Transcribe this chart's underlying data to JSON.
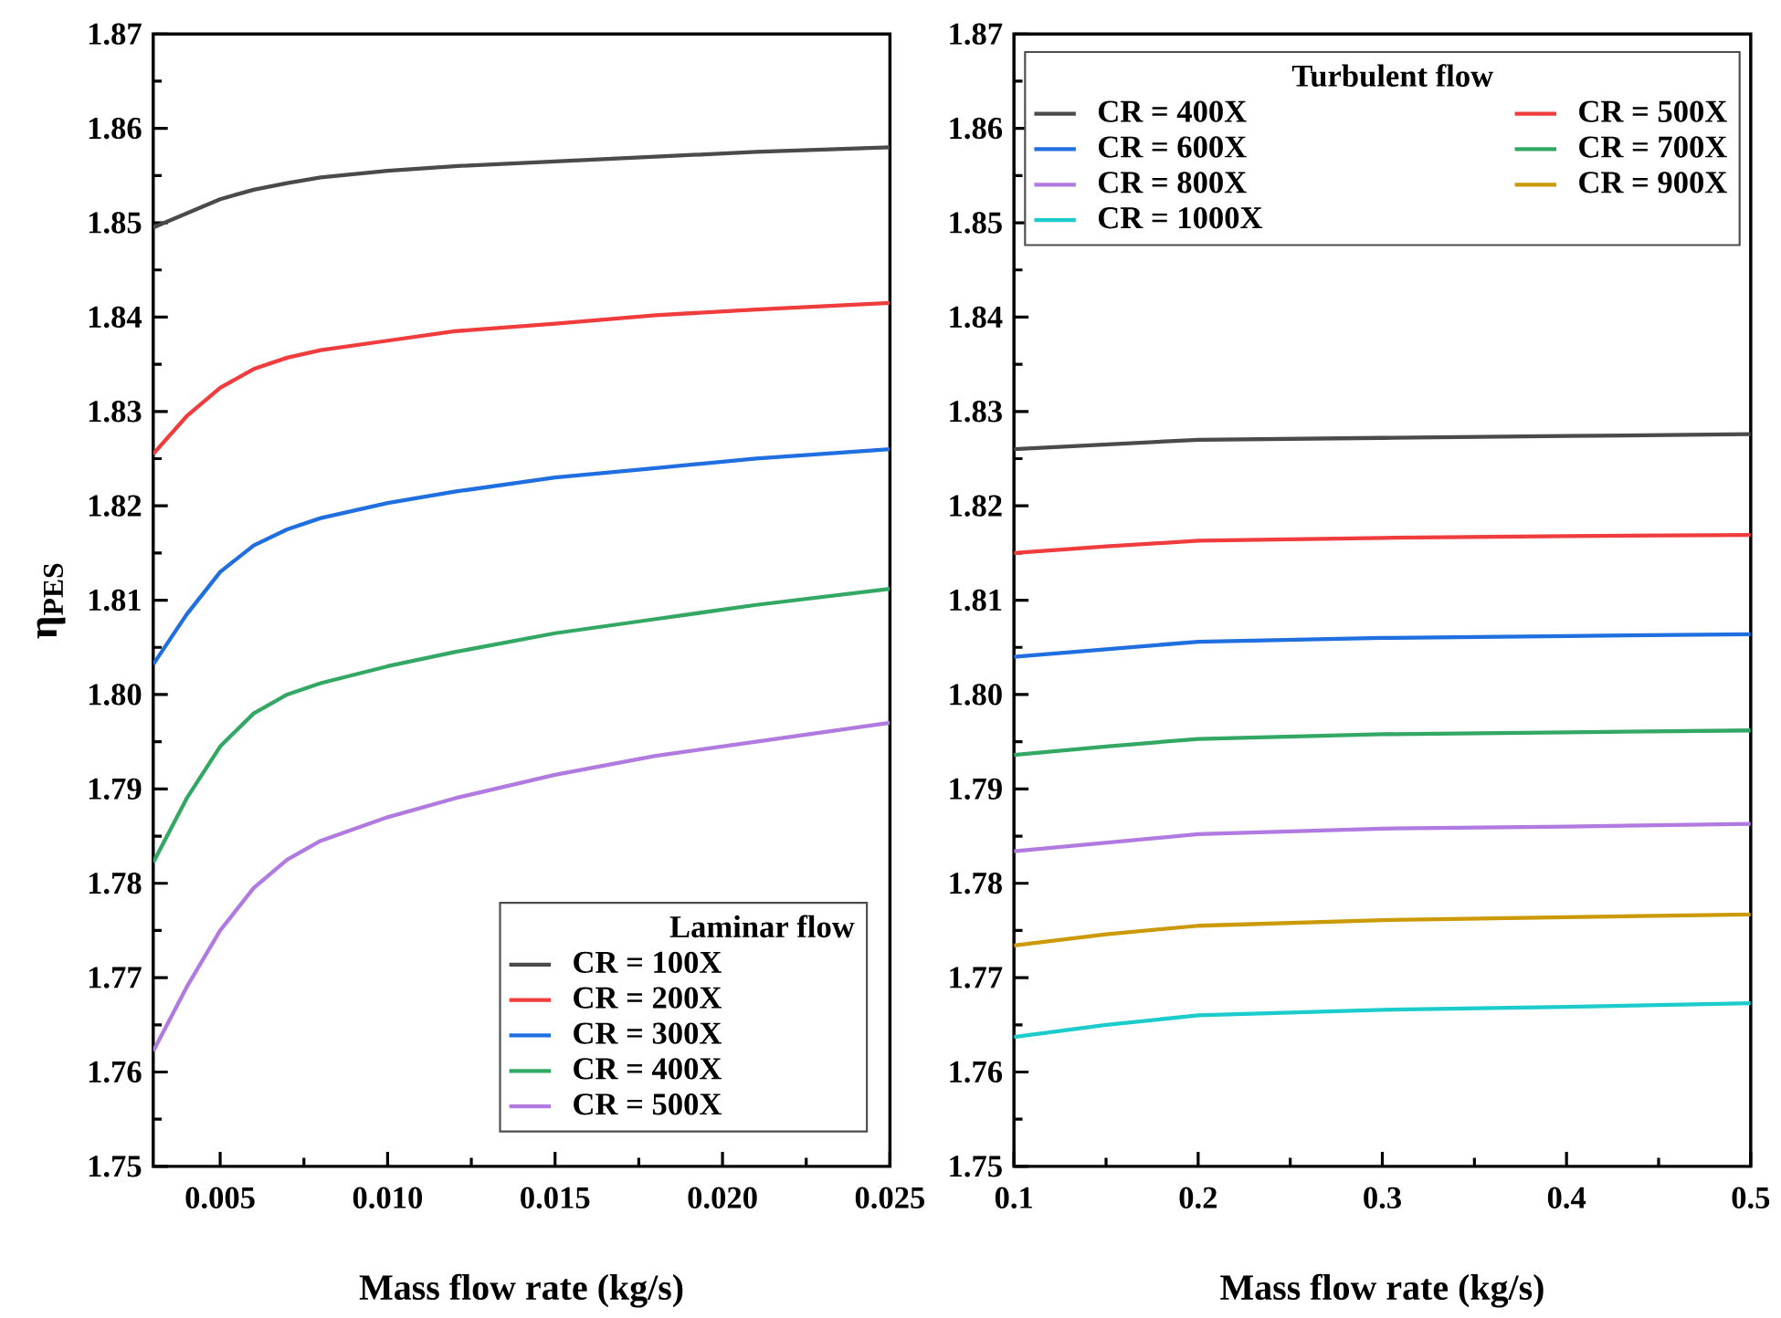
{
  "chart_data": [
    {
      "type": "line",
      "xlabel": "Mass flow rate (kg/s)",
      "ylabel": "η$_{PES}$",
      "legend_title": "Laminar flow",
      "legend": "bottom right",
      "x": [
        0.003,
        0.004,
        0.005,
        0.006,
        0.007,
        0.008,
        0.01,
        0.012,
        0.015,
        0.018,
        0.021,
        0.025
      ],
      "xlim": [
        0.003,
        0.025
      ],
      "ylim": [
        1.75,
        1.87
      ],
      "xticks": [
        0.005,
        {
          "value": 0.01,
          "label": "0.010"
        },
        0.015,
        {
          "value": 0.02,
          "label": "0.020"
        },
        0.025
      ],
      "yticks": [
        1.75,
        1.76,
        1.77,
        1.78,
        1.79,
        {
          "value": 1.8,
          "label": "1.80"
        },
        1.81,
        1.82,
        1.83,
        1.84,
        1.85,
        1.86,
        1.87
      ],
      "series": [
        {
          "name": "CR = 100X",
          "color": "#4a4a4a",
          "values": [
            1.8495,
            1.851,
            1.8525,
            1.8535,
            1.8542,
            1.8548,
            1.8555,
            1.856,
            1.8565,
            1.857,
            1.8575,
            1.858
          ]
        },
        {
          "name": "CR = 200X",
          "color": "#f03c3c",
          "values": [
            1.8255,
            1.8295,
            1.8325,
            1.8345,
            1.8357,
            1.8365,
            1.8375,
            1.8385,
            1.8393,
            1.8402,
            1.8408,
            1.8415
          ]
        },
        {
          "name": "CR = 300X",
          "color": "#1f6fe0",
          "values": [
            1.8032,
            1.8085,
            1.813,
            1.8158,
            1.8175,
            1.8187,
            1.8203,
            1.8215,
            1.823,
            1.824,
            1.825,
            1.826
          ]
        },
        {
          "name": "CR = 400X",
          "color": "#33a864",
          "values": [
            1.7822,
            1.789,
            1.7945,
            1.798,
            1.8,
            1.8012,
            1.803,
            1.8045,
            1.8065,
            1.808,
            1.8095,
            1.8112
          ]
        },
        {
          "name": "CR = 500X",
          "color": "#b07ae0",
          "values": [
            1.7622,
            1.769,
            1.775,
            1.7795,
            1.7825,
            1.7845,
            1.787,
            1.789,
            1.7915,
            1.7935,
            1.795,
            1.797
          ]
        }
      ]
    },
    {
      "type": "line",
      "xlabel": "Mass flow rate (kg/s)",
      "legend_title": "Turbulent flow",
      "legend": "top",
      "x": [
        0.1,
        0.15,
        0.2,
        0.3,
        0.4,
        0.5
      ],
      "xlim": [
        0.1,
        0.5
      ],
      "ylim": [
        1.75,
        1.87
      ],
      "xticks": [
        0.1,
        0.2,
        0.3,
        0.4,
        0.5
      ],
      "yticks": [
        1.75,
        1.76,
        1.77,
        1.78,
        1.79,
        {
          "value": 1.8,
          "label": "1.80"
        },
        1.81,
        1.82,
        1.83,
        1.84,
        1.85,
        1.86,
        1.87
      ],
      "series": [
        {
          "name": "CR = 400X",
          "color": "#4a4a4a",
          "values": [
            1.826,
            1.8265,
            1.827,
            1.8272,
            1.8274,
            1.8276
          ]
        },
        {
          "name": "CR = 500X",
          "color": "#f03c3c",
          "values": [
            1.815,
            1.8157,
            1.8163,
            1.8166,
            1.8168,
            1.8169
          ]
        },
        {
          "name": "CR = 600X",
          "color": "#1f6fe0",
          "values": [
            1.804,
            1.8048,
            1.8056,
            1.806,
            1.8062,
            1.8064
          ]
        },
        {
          "name": "CR = 700X",
          "color": "#33a864",
          "values": [
            1.7936,
            1.7945,
            1.7953,
            1.7958,
            1.796,
            1.7962
          ]
        },
        {
          "name": "CR = 800X",
          "color": "#b07ae0",
          "values": [
            1.7834,
            1.7843,
            1.7852,
            1.7858,
            1.786,
            1.7863
          ]
        },
        {
          "name": "CR = 900X",
          "color": "#cc9a06",
          "values": [
            1.7734,
            1.7746,
            1.7755,
            1.7761,
            1.7764,
            1.7767
          ]
        },
        {
          "name": "CR = 1000X",
          "color": "#1ccccc",
          "values": [
            1.7637,
            1.765,
            1.766,
            1.7666,
            1.7669,
            1.7673
          ]
        }
      ]
    }
  ]
}
